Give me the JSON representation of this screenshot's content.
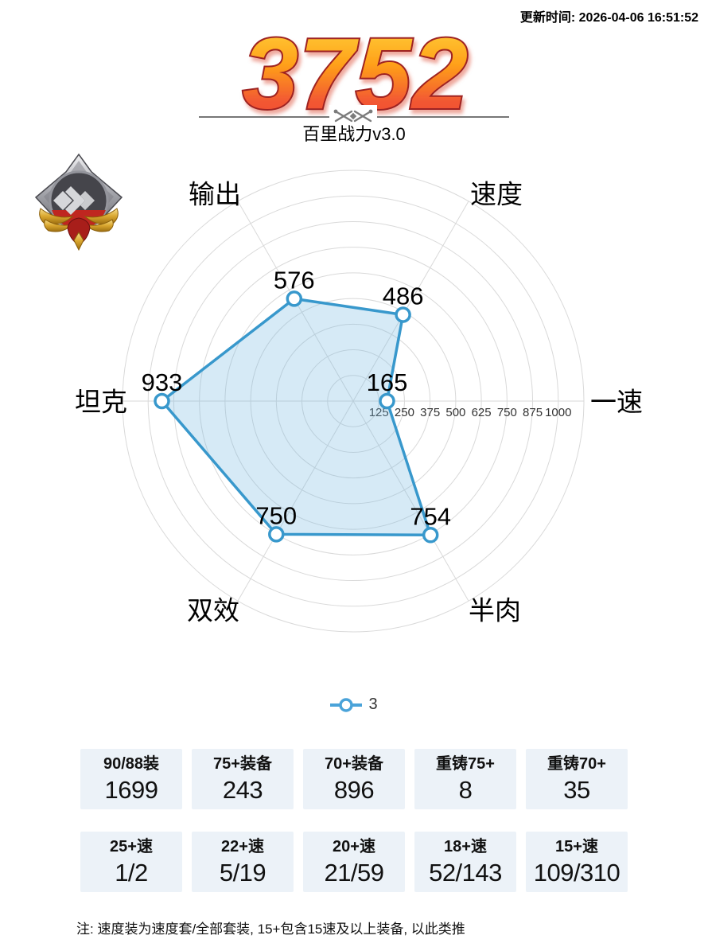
{
  "header": {
    "updated": "更新时间: 2026-04-06 16:51:52"
  },
  "hero": {
    "power": "3752",
    "subtitle": "百里战力v3.0"
  },
  "chart_data": {
    "type": "radar",
    "axes": [
      {
        "label": "一速",
        "value": 165,
        "angle": 0
      },
      {
        "label": "速度",
        "value": 486,
        "angle": 60
      },
      {
        "label": "输出",
        "value": 576,
        "angle": 120
      },
      {
        "label": "坦克",
        "value": 933,
        "angle": 180
      },
      {
        "label": "双效",
        "value": 750,
        "angle": 240
      },
      {
        "label": "半肉",
        "value": 754,
        "angle": 300
      }
    ],
    "series": [
      {
        "name": "3",
        "values": [
          165,
          486,
          576,
          933,
          750,
          754
        ]
      }
    ],
    "axis_max": 1125,
    "ring_count": 9,
    "tick_step": 125,
    "tick_labels": [
      "125",
      "250",
      "375",
      "500",
      "625",
      "750",
      "875",
      "1000"
    ],
    "line_color": "#3898cc",
    "fill_color": "rgba(120,185,226,0.30)",
    "grid_color": "#d9d9d9",
    "legend_position": "bottom",
    "legend_entries": [
      "3"
    ]
  },
  "legend": {
    "label": "3"
  },
  "stats": {
    "row1": [
      {
        "label": "90/88装",
        "value": "1699"
      },
      {
        "label": "75+装备",
        "value": "243"
      },
      {
        "label": "70+装备",
        "value": "896"
      },
      {
        "label": "重铸75+",
        "value": "8"
      },
      {
        "label": "重铸70+",
        "value": "35"
      }
    ],
    "row2": [
      {
        "label": "25+速",
        "value": "1/2"
      },
      {
        "label": "22+速",
        "value": "5/19"
      },
      {
        "label": "20+速",
        "value": "21/59"
      },
      {
        "label": "18+速",
        "value": "52/143"
      },
      {
        "label": "15+速",
        "value": "109/310"
      }
    ]
  },
  "note": "注: 速度装为速度套/全部套装, 15+包含15速及以上装备, 以此类推",
  "colors": {
    "accent_blue": "#3898cc",
    "box_bg": "#ecf2f8",
    "number_gradient_top": "#ffd840",
    "number_gradient_mid": "#ffa019",
    "number_gradient_bottom": "#ee4433",
    "number_outline": "#9e2420"
  }
}
